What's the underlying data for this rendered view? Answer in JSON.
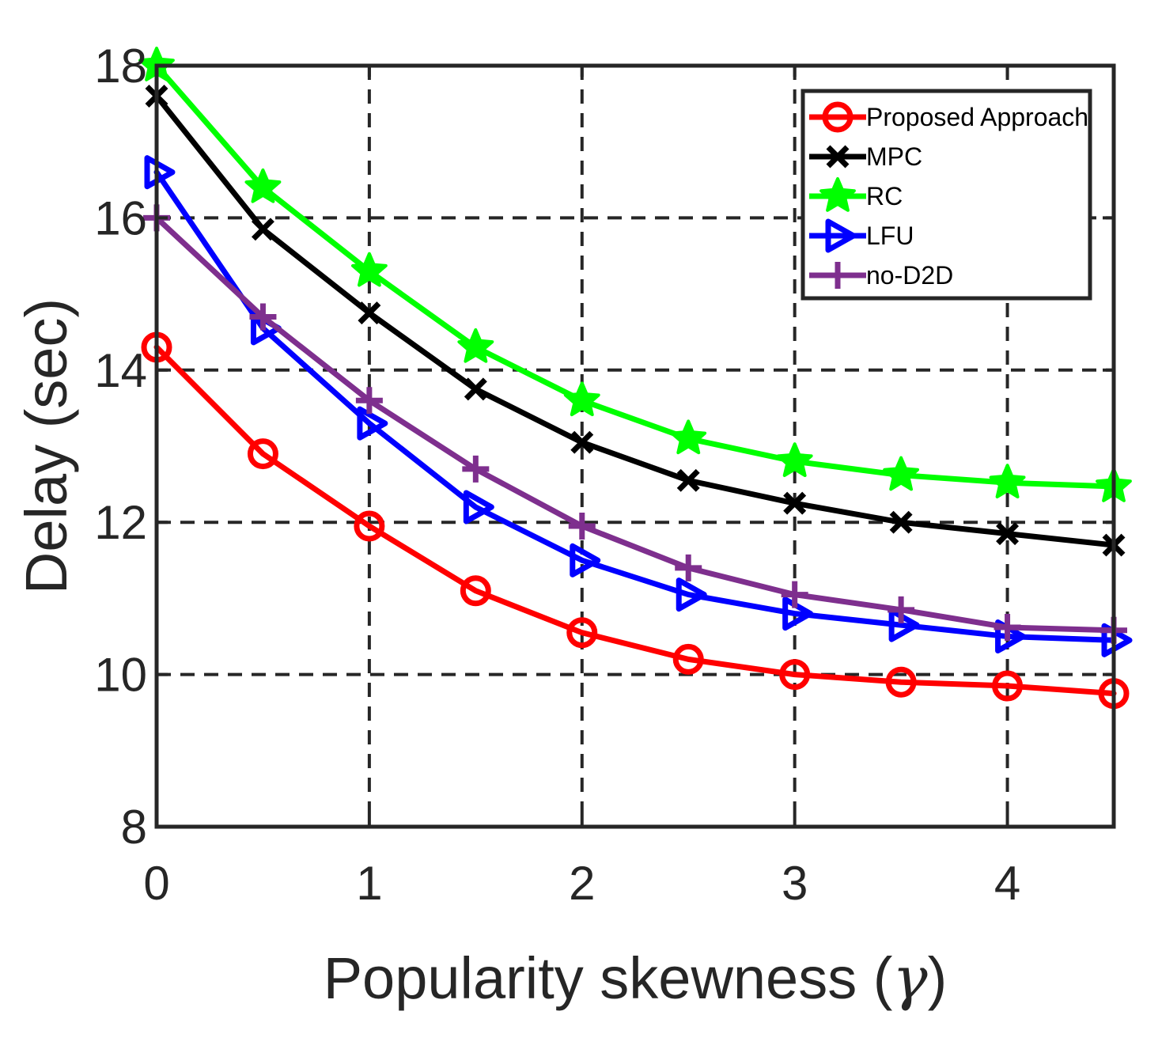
{
  "chart_data": {
    "type": "line",
    "title": "",
    "xlabel_text": "Popularity skewness (",
    "xlabel_symbol": "γ",
    "xlabel_close": ")",
    "ylabel": "Delay (sec)",
    "xlim": [
      0,
      4.5
    ],
    "ylim": [
      8,
      18
    ],
    "xticks": [
      0,
      1,
      2,
      3,
      4
    ],
    "yticks": [
      8,
      10,
      12,
      14,
      16,
      18
    ],
    "grid": true,
    "legend_position": "top-right",
    "x": [
      0,
      0.5,
      1,
      1.5,
      2,
      2.5,
      3,
      3.5,
      4,
      4.5
    ],
    "series": [
      {
        "name": "Proposed Approach",
        "color": "#ff0000",
        "marker": "circle",
        "values": [
          14.3,
          12.9,
          11.95,
          11.1,
          10.55,
          10.2,
          10.0,
          9.9,
          9.85,
          9.75
        ]
      },
      {
        "name": "MPC",
        "color": "#000000",
        "marker": "x",
        "values": [
          17.6,
          15.85,
          14.75,
          13.75,
          13.05,
          12.55,
          12.25,
          12.0,
          11.85,
          11.7
        ]
      },
      {
        "name": "RC",
        "color": "#00ff00",
        "marker": "star",
        "values": [
          18.0,
          16.4,
          15.3,
          14.3,
          13.6,
          13.1,
          12.8,
          12.62,
          12.52,
          12.47
        ]
      },
      {
        "name": "LFU",
        "color": "#0000ff",
        "marker": "triangle-right",
        "values": [
          16.6,
          14.55,
          13.3,
          12.2,
          11.5,
          11.05,
          10.8,
          10.65,
          10.5,
          10.45
        ]
      },
      {
        "name": "no-D2D",
        "color": "#7e2f8e",
        "marker": "plus",
        "values": [
          16.0,
          14.7,
          13.6,
          12.7,
          11.95,
          11.4,
          11.05,
          10.85,
          10.62,
          10.58
        ]
      }
    ]
  }
}
